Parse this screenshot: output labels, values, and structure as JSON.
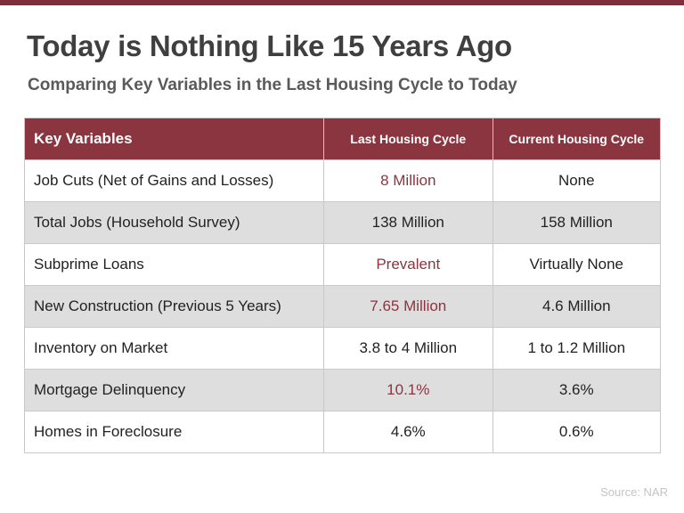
{
  "header": {
    "title": "Today is Nothing Like 15 Years Ago",
    "subtitle": "Comparing Key Variables in the Last Housing Cycle to Today"
  },
  "table": {
    "columns": [
      "Key Variables",
      "Last Housing Cycle",
      "Current Housing Cycle"
    ],
    "rows": [
      [
        "Job Cuts (Net of Gains and Losses)",
        "8 Million",
        "None"
      ],
      [
        "Total Jobs (Household Survey)",
        "138 Million",
        "158 Million"
      ],
      [
        "Subprime Loans",
        "Prevalent",
        "Virtually None"
      ],
      [
        "New Construction (Previous 5 Years)",
        "7.65 Million",
        "4.6 Million"
      ],
      [
        "Inventory on Market",
        "3.8 to 4 Million",
        "1 to 1.2 Million"
      ],
      [
        "Mortgage Delinquency",
        "10.1%",
        "3.6%"
      ],
      [
        "Homes in Foreclosure",
        "4.6%",
        "0.6%"
      ]
    ]
  },
  "footer": {
    "source": "Source: NAR"
  }
}
